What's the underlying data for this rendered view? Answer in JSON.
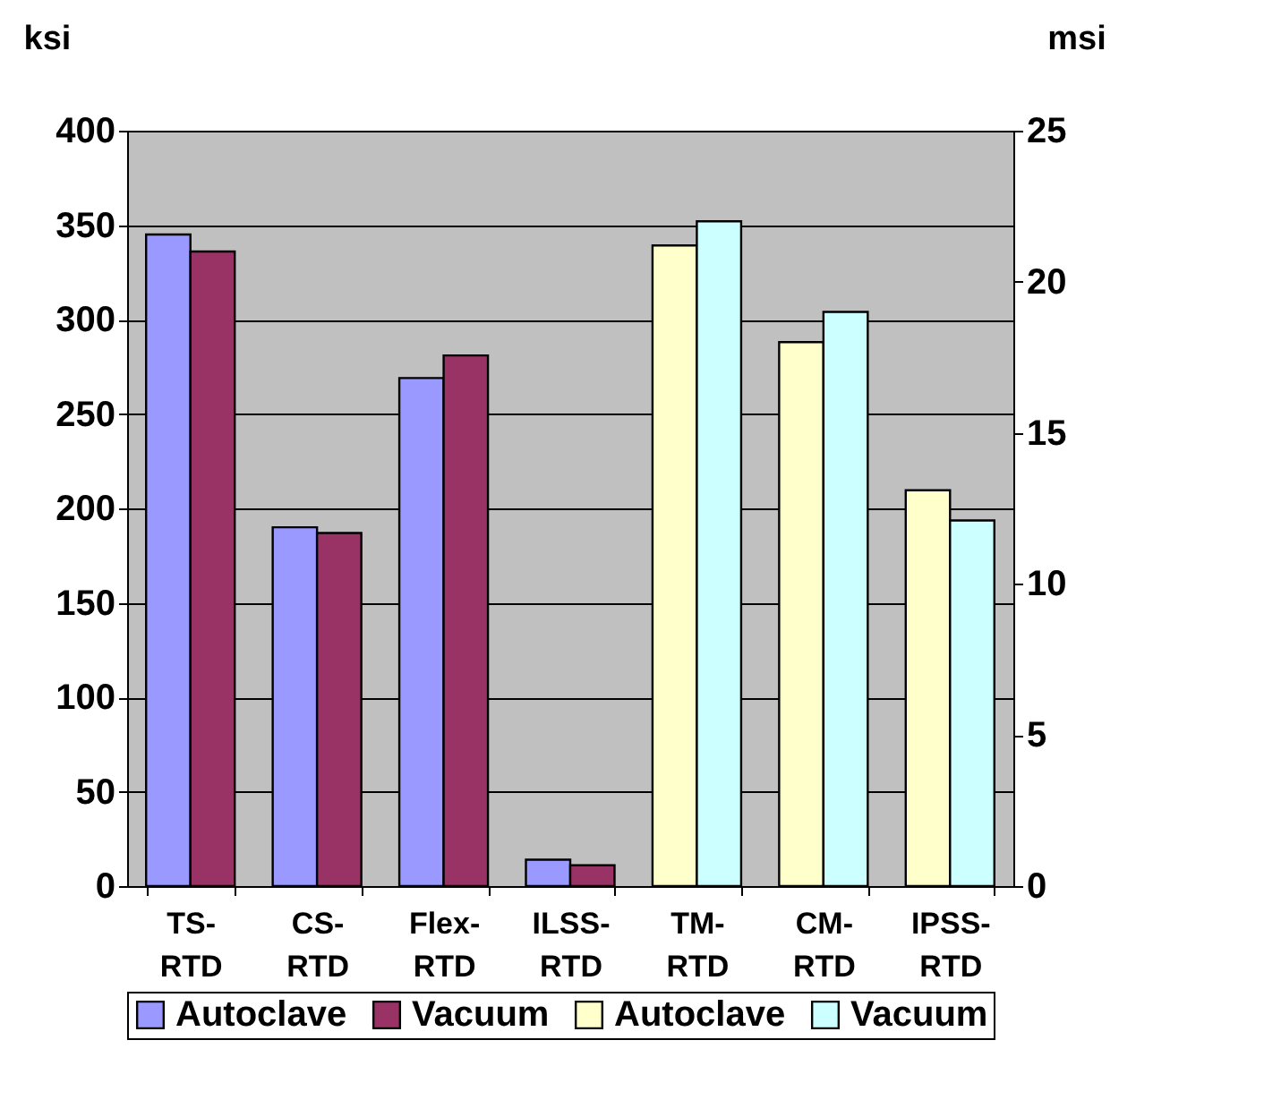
{
  "chart_data": {
    "type": "bar",
    "categories": [
      "TS-RTD",
      "CS-RTD",
      "Flex-RTD",
      "ILSS-RTD",
      "TM-RTD",
      "CM-RTD",
      "IPSS-RTD"
    ],
    "series": [
      {
        "name": "Autoclave",
        "color": "#9999ff",
        "values": [
          345,
          190,
          269,
          14,
          null,
          null,
          null
        ]
      },
      {
        "name": "Vacuum",
        "color": "#993366",
        "values": [
          336,
          187,
          281,
          11,
          null,
          null,
          null
        ]
      },
      {
        "name": "Autoclave",
        "color": "#ffffcc",
        "axis": "y2",
        "values": [
          null,
          null,
          null,
          null,
          21.2,
          18.0,
          13.1
        ]
      },
      {
        "name": "Vacuum",
        "color": "#ccffff",
        "axis": "y2",
        "values": [
          null,
          null,
          null,
          null,
          22.0,
          19.0,
          12.1
        ]
      }
    ],
    "ylabel": "ksi",
    "y2label": "msi",
    "ylim": [
      0,
      400
    ],
    "yticks": [
      0,
      50,
      100,
      150,
      200,
      250,
      300,
      350,
      400
    ],
    "y2lim": [
      0,
      25
    ],
    "y2ticks": [
      0,
      5,
      10,
      15,
      20,
      25
    ],
    "grid": "y",
    "legend": "bottom"
  }
}
